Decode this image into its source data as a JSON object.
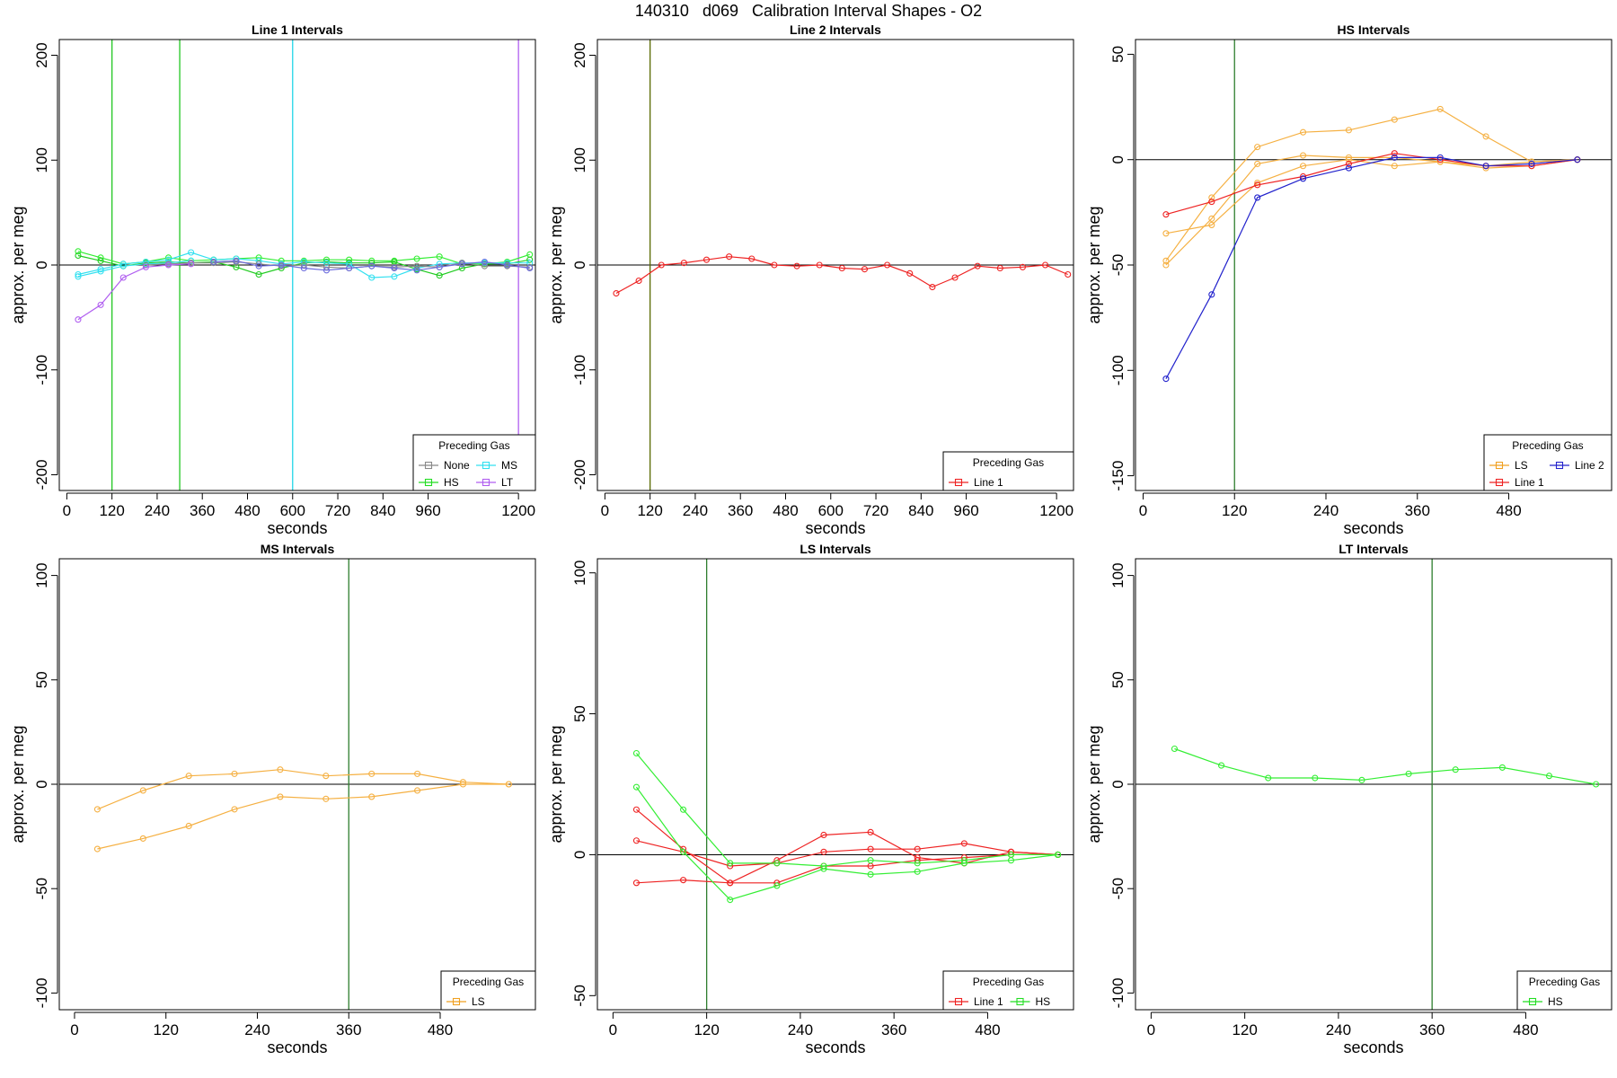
{
  "title": "140310   d069   Calibration Interval Shapes - O2",
  "chart_data": [
    {
      "type": "line",
      "title": "Line 1 Intervals",
      "xlabel": "seconds",
      "ylabel": "approx. per meg",
      "xlim": [
        -20,
        1245
      ],
      "ylim": [
        -215,
        215
      ],
      "xticks": [
        0,
        120,
        240,
        360,
        480,
        600,
        720,
        840,
        960,
        1200
      ],
      "yticks": [
        -200,
        -100,
        0,
        100,
        200
      ],
      "hline": 0,
      "vlines": [
        {
          "x": 120,
          "color": "#22c722"
        },
        {
          "x": 300,
          "color": "#22c722"
        },
        {
          "x": 600,
          "color": "#22d6e8"
        },
        {
          "x": 1200,
          "color": "#b05ef0"
        }
      ],
      "legend": {
        "title": "Preceding Gas",
        "position": "bottom-right",
        "columns": 2,
        "entries": [
          {
            "name": "None",
            "color": "#888888"
          },
          {
            "name": "MS",
            "color": "#33e0f0"
          },
          {
            "name": "HS",
            "color": "#22dd22"
          },
          {
            "name": "LT",
            "color": "#b05ef0"
          }
        ]
      },
      "series": [
        {
          "color": "#33ee33",
          "x": [
            30,
            90,
            150,
            210,
            270,
            330,
            390,
            450,
            510,
            570,
            630,
            690,
            750,
            810,
            870,
            930,
            990,
            1050,
            1110,
            1170,
            1230
          ],
          "y": [
            13,
            7,
            1,
            3,
            7,
            4,
            5,
            6,
            7,
            4,
            4,
            5,
            5,
            4,
            4,
            6,
            8,
            1,
            1,
            3,
            10
          ]
        },
        {
          "color": "#22cc22",
          "x": [
            30,
            90,
            150,
            210,
            270,
            330,
            390,
            450,
            510,
            570,
            630,
            690,
            750,
            810,
            870,
            930,
            990,
            1050,
            1110,
            1170,
            1230
          ],
          "y": [
            9,
            4,
            -1,
            2,
            3,
            2,
            3,
            -2,
            -9,
            -3,
            2,
            3,
            2,
            2,
            3,
            -4,
            -10,
            -3,
            1,
            1,
            5
          ]
        },
        {
          "color": "#33e0f0",
          "x": [
            30,
            90,
            150,
            210,
            270,
            330,
            390,
            450,
            510,
            570,
            630,
            690,
            750,
            810,
            870,
            930,
            990,
            1050,
            1110,
            1170,
            1230
          ],
          "y": [
            -9,
            -4,
            1,
            3,
            5,
            12,
            5,
            6,
            4,
            1,
            3,
            2,
            1,
            -12,
            -11,
            -3,
            1,
            2,
            2,
            2,
            2
          ]
        },
        {
          "color": "#33e0f0",
          "x": [
            30,
            90,
            150,
            210,
            270,
            330
          ],
          "y": [
            -11,
            -6,
            -1,
            1,
            2,
            4
          ]
        },
        {
          "color": "#888888",
          "x": [
            210,
            270,
            330,
            390,
            450,
            510,
            570,
            630,
            690,
            750,
            810,
            870,
            930,
            990,
            1050,
            1110,
            1170,
            1230
          ],
          "y": [
            0,
            1,
            2,
            2,
            3,
            1,
            -1,
            0,
            -2,
            -3,
            -1,
            -2,
            -1,
            -2,
            2,
            -1,
            -1,
            -2
          ]
        },
        {
          "color": "#6b6bdd",
          "x": [
            390,
            450,
            510,
            570,
            630,
            690,
            750,
            810,
            870,
            930,
            990,
            1050,
            1110,
            1170,
            1230
          ],
          "y": [
            3,
            4,
            -1,
            0,
            -3,
            -5,
            -3,
            -1,
            -3,
            -5,
            -2,
            1,
            3,
            0,
            -3
          ]
        },
        {
          "color": "#b05ef0",
          "x": [
            30,
            90,
            150,
            210,
            270,
            330
          ],
          "y": [
            -52,
            -38,
            -12,
            -2,
            0,
            1
          ]
        }
      ]
    },
    {
      "type": "line",
      "title": "Line 2 Intervals",
      "xlabel": "seconds",
      "ylabel": "approx. per meg",
      "xlim": [
        -20,
        1245
      ],
      "ylim": [
        -215,
        215
      ],
      "xticks": [
        0,
        120,
        240,
        360,
        480,
        600,
        720,
        840,
        960,
        1200
      ],
      "yticks": [
        -200,
        -100,
        0,
        100,
        200
      ],
      "hline": 0,
      "vlines": [
        {
          "x": 120,
          "color": "#5a6a00"
        }
      ],
      "legend": {
        "title": "Preceding Gas",
        "position": "bottom-right",
        "columns": 1,
        "entries": [
          {
            "name": "Line 1",
            "color": "#ee2222"
          }
        ]
      },
      "series": [
        {
          "color": "#ee2222",
          "x": [
            30,
            90,
            150,
            210,
            270,
            330,
            390,
            450,
            510,
            570,
            630,
            690,
            750,
            810,
            870,
            930,
            990,
            1050,
            1110,
            1170,
            1230
          ],
          "y": [
            -27,
            -15,
            0,
            2,
            5,
            8,
            6,
            0,
            -1,
            0,
            -3,
            -4,
            0,
            -8,
            -21,
            -12,
            -1,
            -3,
            -2,
            0,
            -9
          ]
        }
      ]
    },
    {
      "type": "line",
      "title": "HS Intervals",
      "xlabel": "seconds",
      "ylabel": "approx. per meg",
      "xlim": [
        -10,
        615
      ],
      "ylim": [
        -157,
        57
      ],
      "xticks": [
        0,
        120,
        240,
        360,
        480
      ],
      "yticks": [
        -150,
        -100,
        -50,
        0,
        50
      ],
      "hline": 0,
      "vlines": [
        {
          "x": 120,
          "color": "#2e7d2e"
        }
      ],
      "legend": {
        "title": "Preceding Gas",
        "position": "bottom-right",
        "columns": 2,
        "entries": [
          {
            "name": "LS",
            "color": "#f0a020"
          },
          {
            "name": "Line 2",
            "color": "#2222cc"
          },
          {
            "name": "Line 1",
            "color": "#ee2222"
          }
        ]
      },
      "series": [
        {
          "color": "#f5b042",
          "x": [
            30,
            90,
            150,
            210,
            270,
            330,
            390,
            450,
            510,
            570
          ],
          "y": [
            -48,
            -18,
            6,
            13,
            14,
            19,
            24,
            11,
            -1,
            0
          ]
        },
        {
          "color": "#f5b042",
          "x": [
            30,
            90,
            150,
            210,
            270,
            330,
            390,
            450,
            510,
            570
          ],
          "y": [
            -50,
            -28,
            -2,
            2,
            1,
            1,
            -1,
            -4,
            -3,
            0
          ]
        },
        {
          "color": "#f5b042",
          "x": [
            30,
            90,
            150,
            210,
            270,
            330,
            390,
            450,
            510,
            570
          ],
          "y": [
            -35,
            -31,
            -11,
            -3,
            0,
            -3,
            -1,
            -3,
            -1,
            0
          ]
        },
        {
          "color": "#ee2222",
          "x": [
            30,
            90,
            150,
            210,
            270,
            330,
            390,
            450,
            510,
            570
          ],
          "y": [
            -26,
            -20,
            -12,
            -8,
            -2,
            3,
            0,
            -3,
            -3,
            0
          ]
        },
        {
          "color": "#2222cc",
          "x": [
            30,
            90,
            150,
            210,
            270,
            330,
            390,
            450,
            510,
            570
          ],
          "y": [
            -104,
            -64,
            -18,
            -9,
            -4,
            1,
            1,
            -3,
            -2,
            0
          ]
        }
      ]
    },
    {
      "type": "line",
      "title": "MS Intervals",
      "xlabel": "seconds",
      "ylabel": "approx. per meg",
      "xlim": [
        -20,
        605
      ],
      "ylim": [
        -108,
        108
      ],
      "xticks": [
        0,
        120,
        240,
        360,
        480
      ],
      "yticks": [
        -100,
        -50,
        0,
        50,
        100
      ],
      "hline": 0,
      "vlines": [
        {
          "x": 360,
          "color": "#2e7d2e"
        }
      ],
      "legend": {
        "title": "Preceding Gas",
        "position": "bottom-right",
        "columns": 1,
        "entries": [
          {
            "name": "LS",
            "color": "#f0a020"
          }
        ]
      },
      "series": [
        {
          "color": "#f5b042",
          "x": [
            30,
            90,
            150,
            210,
            270,
            330,
            390,
            450,
            510,
            570
          ],
          "y": [
            -12,
            -3,
            4,
            5,
            7,
            4,
            5,
            5,
            1,
            0
          ]
        },
        {
          "color": "#f5b042",
          "x": [
            30,
            90,
            150,
            210,
            270,
            330,
            390,
            450,
            510,
            570
          ],
          "y": [
            -31,
            -26,
            -20,
            -12,
            -6,
            -7,
            -6,
            -3,
            0,
            0
          ]
        }
      ]
    },
    {
      "type": "line",
      "title": "LS Intervals",
      "xlabel": "seconds",
      "ylabel": "approx. per meg",
      "xlim": [
        -20,
        590
      ],
      "ylim": [
        -55,
        105
      ],
      "xticks": [
        0,
        120,
        240,
        360,
        480
      ],
      "yticks": [
        -50,
        0,
        50,
        100
      ],
      "hline": 0,
      "vlines": [
        {
          "x": 120,
          "color": "#2e7d2e"
        }
      ],
      "legend": {
        "title": "Preceding Gas",
        "position": "bottom-right",
        "columns": 2,
        "entries": [
          {
            "name": "Line 1",
            "color": "#ee2222"
          },
          {
            "name": "HS",
            "color": "#22dd22"
          }
        ]
      },
      "series": [
        {
          "color": "#ee2222",
          "x": [
            30,
            90,
            150,
            210,
            270,
            330,
            390,
            450,
            510,
            570
          ],
          "y": [
            16,
            2,
            -10,
            -2,
            7,
            8,
            -1,
            -3,
            1,
            0
          ]
        },
        {
          "color": "#ee2222",
          "x": [
            30,
            90,
            150,
            210,
            270,
            330,
            390,
            450,
            510,
            570
          ],
          "y": [
            5,
            1,
            -4,
            -3,
            1,
            2,
            2,
            4,
            1,
            0
          ]
        },
        {
          "color": "#ee2222",
          "x": [
            30,
            90,
            150,
            210,
            270,
            330,
            390,
            450,
            510,
            570
          ],
          "y": [
            -10,
            -9,
            -10,
            -10,
            -4,
            -4,
            -2,
            -1,
            0,
            0
          ]
        },
        {
          "color": "#33ee33",
          "x": [
            30,
            90,
            150,
            210,
            270,
            330,
            390,
            450,
            510,
            570
          ],
          "y": [
            36,
            16,
            -3,
            -3,
            -4,
            -2,
            -3,
            -2,
            0,
            0
          ]
        },
        {
          "color": "#33ee33",
          "x": [
            30,
            90,
            150,
            210,
            270,
            330,
            390,
            450,
            510,
            570
          ],
          "y": [
            24,
            1,
            -16,
            -11,
            -5,
            -7,
            -6,
            -3,
            -2,
            0
          ]
        }
      ]
    },
    {
      "type": "line",
      "title": "LT Intervals",
      "xlabel": "seconds",
      "ylabel": "approx. per meg",
      "xlim": [
        -20,
        590
      ],
      "ylim": [
        -108,
        108
      ],
      "xticks": [
        0,
        120,
        240,
        360,
        480
      ],
      "yticks": [
        -100,
        -50,
        0,
        50,
        100
      ],
      "hline": 0,
      "vlines": [
        {
          "x": 360,
          "color": "#2e7d2e"
        }
      ],
      "legend": {
        "title": "Preceding Gas",
        "position": "bottom-right",
        "columns": 1,
        "entries": [
          {
            "name": "HS",
            "color": "#22dd22"
          }
        ]
      },
      "series": [
        {
          "color": "#33ee33",
          "x": [
            30,
            90,
            150,
            210,
            270,
            330,
            390,
            450,
            510,
            570
          ],
          "y": [
            17,
            9,
            3,
            3,
            2,
            5,
            7,
            8,
            4,
            0
          ]
        }
      ]
    }
  ]
}
